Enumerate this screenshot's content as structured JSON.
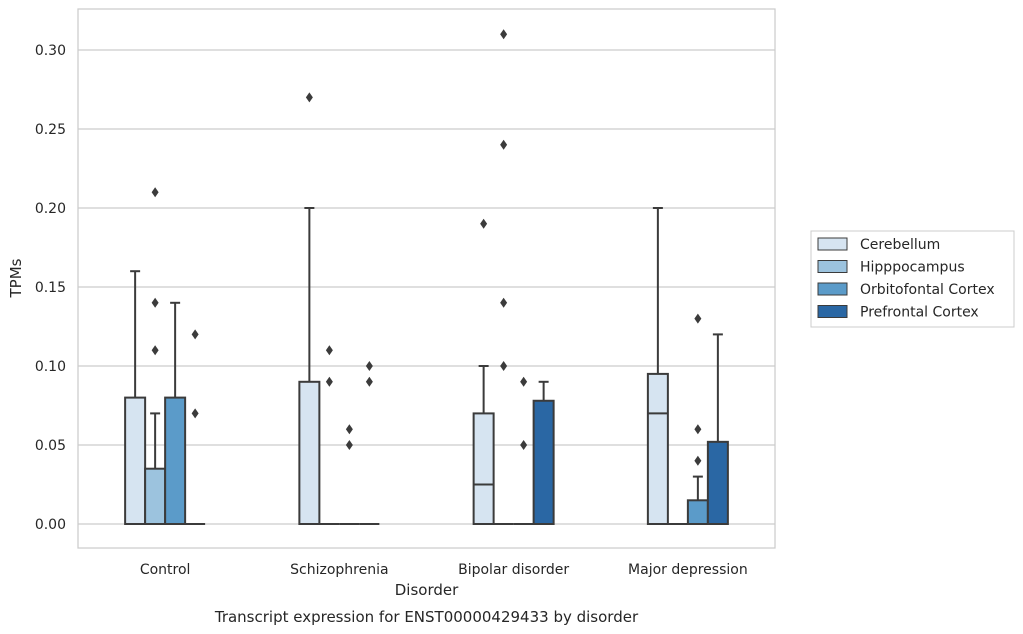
{
  "chart_data": {
    "type": "box",
    "title": "",
    "caption": "Transcript expression for ENST00000429433 by disorder",
    "xlabel": "Disorder",
    "ylabel": "TPMs",
    "ylim": [
      -0.015,
      0.325
    ],
    "yticks": [
      "0.00",
      "0.05",
      "0.10",
      "0.15",
      "0.20",
      "0.25",
      "0.30"
    ],
    "ytick_values": [
      0,
      0.05,
      0.1,
      0.15,
      0.2,
      0.25,
      0.3
    ],
    "grid": "horizontal",
    "legend_position": "right",
    "categories": [
      "Control",
      "Schizophrenia",
      "Bipolar disorder",
      "Major depression"
    ],
    "series": [
      {
        "name": "Cerebellum",
        "color": "#d6e4f1",
        "boxes": [
          {
            "q1": 0,
            "median": 0,
            "q3": 0.08,
            "whislo": 0,
            "whishi": 0.16,
            "outliers": []
          },
          {
            "q1": 0,
            "median": 0,
            "q3": 0.09,
            "whislo": 0,
            "whishi": 0.2,
            "outliers": [
              0.27
            ]
          },
          {
            "q1": 0,
            "median": 0.025,
            "q3": 0.07,
            "whislo": 0,
            "whishi": 0.1,
            "outliers": [
              0.19
            ]
          },
          {
            "q1": 0,
            "median": 0.07,
            "q3": 0.095,
            "whislo": 0,
            "whishi": 0.2,
            "outliers": []
          }
        ]
      },
      {
        "name": "Hipppocampus",
        "color": "#9cc3de",
        "boxes": [
          {
            "q1": 0,
            "median": 0,
            "q3": 0.035,
            "whislo": 0,
            "whishi": 0.07,
            "outliers": [
              0.11,
              0.14,
              0.21
            ]
          },
          {
            "q1": 0,
            "median": 0,
            "q3": 0,
            "whislo": 0,
            "whishi": 0,
            "outliers": [
              0.09,
              0.11
            ]
          },
          {
            "q1": 0,
            "median": 0,
            "q3": 0,
            "whislo": 0,
            "whishi": 0,
            "outliers": [
              0.1,
              0.14,
              0.24,
              0.31
            ]
          },
          {
            "q1": 0,
            "median": 0,
            "q3": 0,
            "whislo": 0,
            "whishi": 0,
            "outliers": []
          }
        ]
      },
      {
        "name": "Orbitofontal Cortex",
        "color": "#5b9bc9",
        "boxes": [
          {
            "q1": 0,
            "median": 0,
            "q3": 0.08,
            "whislo": 0,
            "whishi": 0.14,
            "outliers": []
          },
          {
            "q1": 0,
            "median": 0,
            "q3": 0,
            "whislo": 0,
            "whishi": 0,
            "outliers": [
              0.05,
              0.06
            ]
          },
          {
            "q1": 0,
            "median": 0,
            "q3": 0,
            "whislo": 0,
            "whishi": 0,
            "outliers": [
              0.05,
              0.09
            ]
          },
          {
            "q1": 0,
            "median": 0,
            "q3": 0.015,
            "whislo": 0,
            "whishi": 0.03,
            "outliers": [
              0.04,
              0.06,
              0.13
            ]
          }
        ]
      },
      {
        "name": "Prefrontal Cortex",
        "color": "#2a67a4",
        "boxes": [
          {
            "q1": 0,
            "median": 0,
            "q3": 0,
            "whislo": 0,
            "whishi": 0,
            "outliers": [
              0.07,
              0.12
            ]
          },
          {
            "q1": 0,
            "median": 0,
            "q3": 0,
            "whislo": 0,
            "whishi": 0,
            "outliers": [
              0.09,
              0.1
            ]
          },
          {
            "q1": 0,
            "median": 0,
            "q3": 0.078,
            "whislo": 0,
            "whishi": 0.09,
            "outliers": []
          },
          {
            "q1": 0,
            "median": 0,
            "q3": 0.052,
            "whislo": 0,
            "whishi": 0.12,
            "outliers": []
          }
        ]
      }
    ]
  }
}
